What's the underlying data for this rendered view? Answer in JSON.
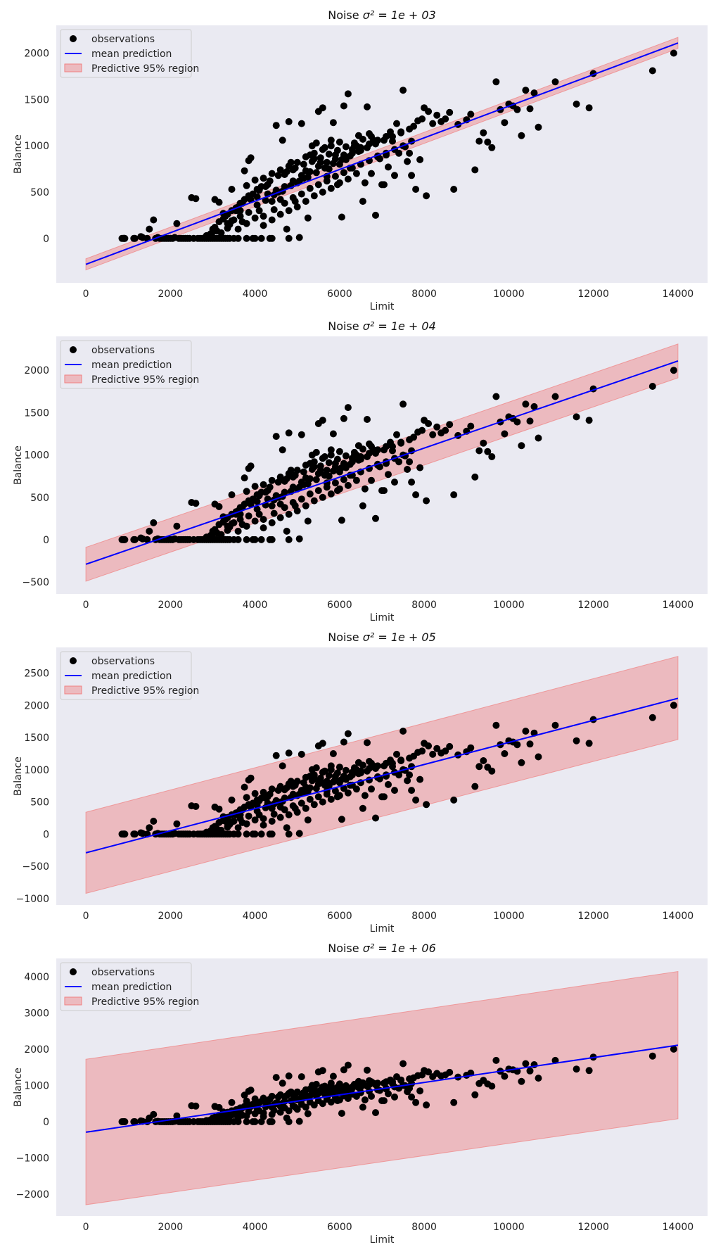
{
  "figure": {
    "background": "#ffffff",
    "plot_background": "#eaeaf2"
  },
  "colors": {
    "points": "#000000",
    "line": "#0000ff",
    "band": "#f08080",
    "band_alpha": 0.45
  },
  "legend_entries": {
    "observations": "observations",
    "mean": "mean prediction",
    "band": "Predictive 95% region"
  },
  "chart_data": [
    {
      "type": "scatter",
      "title_prefix": "Noise ",
      "title_math": "σ² = 1e + 03",
      "xlabel": "Limit",
      "ylabel": "Balance",
      "xlim": [
        -700,
        14700
      ],
      "ylim": [
        -480,
        2300
      ],
      "xticks": [
        0,
        2000,
        4000,
        6000,
        8000,
        10000,
        12000,
        14000
      ],
      "xtick_labels": [
        "0",
        "2000",
        "4000",
        "6000",
        "8000",
        "10000",
        "12000",
        "14000"
      ],
      "yticks": [
        0,
        500,
        1000,
        1500,
        2000
      ],
      "ytick_labels": [
        "0",
        "500",
        "1000",
        "1500",
        "2000"
      ],
      "mean_line": [
        [
          0,
          -280
        ],
        [
          14000,
          2110
        ]
      ],
      "band_upper": [
        [
          0,
          -220
        ],
        [
          14000,
          2170
        ]
      ],
      "band_lower": [
        [
          0,
          -340
        ],
        [
          14000,
          2050
        ]
      ]
    },
    {
      "type": "scatter",
      "title_prefix": "Noise ",
      "title_math": "σ² = 1e + 04",
      "xlabel": "Limit",
      "ylabel": "Balance",
      "xlim": [
        -700,
        14700
      ],
      "ylim": [
        -640,
        2400
      ],
      "xticks": [
        0,
        2000,
        4000,
        6000,
        8000,
        10000,
        12000,
        14000
      ],
      "xtick_labels": [
        "0",
        "2000",
        "4000",
        "6000",
        "8000",
        "10000",
        "12000",
        "14000"
      ],
      "yticks": [
        -500,
        0,
        500,
        1000,
        1500,
        2000
      ],
      "ytick_labels": [
        "−500",
        "0",
        "500",
        "1000",
        "1500",
        "2000"
      ],
      "mean_line": [
        [
          0,
          -290
        ],
        [
          14000,
          2110
        ]
      ],
      "band_upper": [
        [
          0,
          -90
        ],
        [
          14000,
          2310
        ]
      ],
      "band_lower": [
        [
          0,
          -490
        ],
        [
          14000,
          1910
        ]
      ]
    },
    {
      "type": "scatter",
      "title_prefix": "Noise ",
      "title_math": "σ² = 1e + 05",
      "xlabel": "Limit",
      "ylabel": "Balance",
      "xlim": [
        -700,
        14700
      ],
      "ylim": [
        -1100,
        2900
      ],
      "xticks": [
        0,
        2000,
        4000,
        6000,
        8000,
        10000,
        12000,
        14000
      ],
      "xtick_labels": [
        "0",
        "2000",
        "4000",
        "6000",
        "8000",
        "10000",
        "12000",
        "14000"
      ],
      "yticks": [
        -1000,
        -500,
        0,
        500,
        1000,
        1500,
        2000,
        2500
      ],
      "ytick_labels": [
        "−1000",
        "−500",
        "0",
        "500",
        "1000",
        "1500",
        "2000",
        "2500"
      ],
      "mean_line": [
        [
          0,
          -290
        ],
        [
          14000,
          2110
        ]
      ],
      "band_upper": [
        [
          0,
          340
        ],
        [
          14000,
          2760
        ]
      ],
      "band_lower": [
        [
          0,
          -920
        ],
        [
          14000,
          1470
        ]
      ]
    },
    {
      "type": "scatter",
      "title_prefix": "Noise ",
      "title_math": "σ² = 1e + 06",
      "xlabel": "Limit",
      "ylabel": "Balance",
      "xlim": [
        -700,
        14700
      ],
      "ylim": [
        -2600,
        4500
      ],
      "xticks": [
        0,
        2000,
        4000,
        6000,
        8000,
        10000,
        12000,
        14000
      ],
      "xtick_labels": [
        "0",
        "2000",
        "4000",
        "6000",
        "8000",
        "10000",
        "12000",
        "14000"
      ],
      "yticks": [
        -2000,
        -1000,
        0,
        1000,
        2000,
        3000,
        4000
      ],
      "ytick_labels": [
        "−2000",
        "−1000",
        "0",
        "1000",
        "2000",
        "3000",
        "4000"
      ],
      "mean_line": [
        [
          0,
          -290
        ],
        [
          14000,
          2110
        ]
      ],
      "band_upper": [
        [
          0,
          1720
        ],
        [
          14000,
          4140
        ]
      ],
      "band_lower": [
        [
          0,
          -2290
        ],
        [
          14000,
          80
        ]
      ]
    }
  ],
  "observations": [
    [
      855,
      0
    ],
    [
      886,
      0
    ],
    [
      905,
      0
    ],
    [
      920,
      0
    ],
    [
      1134,
      0
    ],
    [
      1160,
      0
    ],
    [
      1300,
      20
    ],
    [
      1340,
      10
    ],
    [
      1450,
      0
    ],
    [
      1500,
      100
    ],
    [
      1600,
      200
    ],
    [
      1650,
      0
    ],
    [
      1700,
      10
    ],
    [
      1750,
      0
    ],
    [
      1800,
      0
    ],
    [
      1850,
      0
    ],
    [
      1900,
      0
    ],
    [
      1950,
      0
    ],
    [
      2000,
      0
    ],
    [
      2050,
      0
    ],
    [
      2100,
      10
    ],
    [
      2150,
      160
    ],
    [
      2200,
      0
    ],
    [
      2250,
      0
    ],
    [
      2300,
      0
    ],
    [
      2350,
      0
    ],
    [
      2400,
      0
    ],
    [
      2450,
      0
    ],
    [
      2500,
      440
    ],
    [
      2550,
      0
    ],
    [
      2600,
      430
    ],
    [
      2650,
      0
    ],
    [
      2700,
      0
    ],
    [
      2750,
      0
    ],
    [
      2800,
      0
    ],
    [
      2850,
      0
    ],
    [
      2900,
      30
    ],
    [
      2950,
      0
    ],
    [
      3000,
      100
    ],
    [
      3000,
      70
    ],
    [
      3050,
      420
    ],
    [
      3100,
      0
    ],
    [
      3150,
      390
    ],
    [
      3200,
      0
    ],
    [
      3250,
      270
    ],
    [
      3300,
      0
    ],
    [
      3350,
      160
    ],
    [
      3400,
      150
    ],
    [
      3450,
      530
    ],
    [
      3500,
      0
    ],
    [
      3550,
      300
    ],
    [
      3600,
      340
    ],
    [
      3650,
      300
    ],
    [
      3700,
      180
    ],
    [
      3750,
      730
    ],
    [
      3800,
      570
    ],
    [
      3850,
      840
    ],
    [
      3900,
      870
    ],
    [
      3950,
      0
    ],
    [
      4000,
      630
    ],
    [
      4050,
      450
    ],
    [
      4100,
      520
    ],
    [
      4150,
      0
    ],
    [
      4200,
      240
    ],
    [
      4250,
      560
    ],
    [
      4300,
      580
    ],
    [
      4350,
      0
    ],
    [
      4400,
      400
    ],
    [
      4450,
      310
    ],
    [
      4500,
      1220
    ],
    [
      4550,
      500
    ],
    [
      4600,
      420
    ],
    [
      4650,
      1060
    ],
    [
      4700,
      690
    ],
    [
      4750,
      100
    ],
    [
      4800,
      1260
    ],
    [
      4850,
      820
    ],
    [
      4900,
      740
    ],
    [
      4950,
      400
    ],
    [
      5000,
      600
    ],
    [
      5050,
      10
    ],
    [
      5100,
      1240
    ],
    [
      5150,
      650
    ],
    [
      5200,
      730
    ],
    [
      5250,
      220
    ],
    [
      5300,
      900
    ],
    [
      5350,
      1000
    ],
    [
      5400,
      860
    ],
    [
      5450,
      1030
    ],
    [
      5500,
      1370
    ],
    [
      5550,
      820
    ],
    [
      5600,
      1410
    ],
    [
      5650,
      980
    ],
    [
      5700,
      670
    ],
    [
      5750,
      750
    ],
    [
      5800,
      1060
    ],
    [
      5850,
      1250
    ],
    [
      5900,
      900
    ],
    [
      5950,
      580
    ],
    [
      6000,
      800
    ],
    [
      6050,
      230
    ],
    [
      6100,
      1430
    ],
    [
      6150,
      850
    ],
    [
      6200,
      1560
    ],
    [
      6250,
      760
    ],
    [
      6300,
      960
    ],
    [
      6350,
      1000
    ],
    [
      6400,
      1000
    ],
    [
      6450,
      1110
    ],
    [
      6500,
      950
    ],
    [
      6550,
      400
    ],
    [
      6600,
      600
    ],
    [
      6650,
      1420
    ],
    [
      6700,
      1130
    ],
    [
      6750,
      700
    ],
    [
      6800,
      1060
    ],
    [
      6850,
      250
    ],
    [
      6900,
      890
    ],
    [
      6950,
      860
    ],
    [
      7000,
      580
    ],
    [
      7050,
      580
    ],
    [
      7100,
      900
    ],
    [
      7150,
      770
    ],
    [
      7200,
      1150
    ],
    [
      7250,
      1050
    ],
    [
      7300,
      680
    ],
    [
      7350,
      1240
    ],
    [
      7400,
      920
    ],
    [
      7450,
      1150
    ],
    [
      7500,
      1600
    ],
    [
      7550,
      990
    ],
    [
      7600,
      830
    ],
    [
      7650,
      920
    ],
    [
      7700,
      680
    ],
    [
      7750,
      1210
    ],
    [
      7800,
      530
    ],
    [
      7850,
      1270
    ],
    [
      7900,
      850
    ],
    [
      7950,
      1290
    ],
    [
      8000,
      1410
    ],
    [
      8050,
      460
    ],
    [
      8100,
      1370
    ],
    [
      8200,
      1240
    ],
    [
      8300,
      1330
    ],
    [
      8400,
      1260
    ],
    [
      8500,
      1290
    ],
    [
      8600,
      1360
    ],
    [
      8700,
      530
    ],
    [
      8800,
      1230
    ],
    [
      9000,
      1280
    ],
    [
      9100,
      1340
    ],
    [
      9200,
      740
    ],
    [
      9300,
      1050
    ],
    [
      9400,
      1140
    ],
    [
      9500,
      1040
    ],
    [
      9600,
      980
    ],
    [
      9700,
      1690
    ],
    [
      9800,
      1390
    ],
    [
      9900,
      1250
    ],
    [
      10000,
      1450
    ],
    [
      10100,
      1430
    ],
    [
      10200,
      1390
    ],
    [
      10300,
      1110
    ],
    [
      10400,
      1600
    ],
    [
      10500,
      1400
    ],
    [
      10600,
      1570
    ],
    [
      10700,
      1200
    ],
    [
      11100,
      1690
    ],
    [
      11600,
      1450
    ],
    [
      11900,
      1410
    ],
    [
      12000,
      1780
    ],
    [
      13400,
      1810
    ],
    [
      13900,
      2000
    ],
    [
      3100,
      80
    ],
    [
      3300,
      240
    ],
    [
      3500,
      200
    ],
    [
      3700,
      380
    ],
    [
      3900,
      420
    ],
    [
      4100,
      300
    ],
    [
      4300,
      480
    ],
    [
      4500,
      520
    ],
    [
      4700,
      560
    ],
    [
      4900,
      620
    ],
    [
      5100,
      680
    ],
    [
      5300,
      720
    ],
    [
      5500,
      780
    ],
    [
      5700,
      820
    ],
    [
      5900,
      860
    ],
    [
      6100,
      900
    ],
    [
      6300,
      920
    ],
    [
      6500,
      980
    ],
    [
      6700,
      1020
    ],
    [
      6900,
      1060
    ],
    [
      7100,
      1100
    ],
    [
      4200,
      650
    ],
    [
      4400,
      700
    ],
    [
      4600,
      740
    ],
    [
      4800,
      780
    ],
    [
      5000,
      820
    ],
    [
      5200,
      880
    ],
    [
      5400,
      920
    ],
    [
      5600,
      960
    ],
    [
      5800,
      1000
    ],
    [
      6000,
      1040
    ],
    [
      3600,
      100
    ],
    [
      3800,
      160
    ],
    [
      4000,
      220
    ],
    [
      4200,
      140
    ],
    [
      4400,
      200
    ],
    [
      4600,
      260
    ],
    [
      4800,
      300
    ],
    [
      5000,
      340
    ],
    [
      5200,
      400
    ],
    [
      5400,
      460
    ],
    [
      5600,
      500
    ],
    [
      5800,
      540
    ],
    [
      6000,
      600
    ],
    [
      6200,
      640
    ],
    [
      6400,
      700
    ],
    [
      3400,
      0
    ],
    [
      3600,
      0
    ],
    [
      3800,
      0
    ],
    [
      4000,
      0
    ],
    [
      4400,
      0
    ],
    [
      4800,
      0
    ],
    [
      3200,
      60
    ],
    [
      3350,
      110
    ],
    [
      3450,
      190
    ],
    [
      3650,
      240
    ],
    [
      3850,
      280
    ],
    [
      4050,
      360
    ],
    [
      4250,
      410
    ],
    [
      4450,
      470
    ],
    [
      4650,
      510
    ],
    [
      4850,
      570
    ],
    [
      5050,
      620
    ],
    [
      5250,
      660
    ],
    [
      5450,
      710
    ],
    [
      5650,
      760
    ],
    [
      5850,
      810
    ],
    [
      6050,
      850
    ],
    [
      6250,
      890
    ],
    [
      6450,
      940
    ],
    [
      6650,
      980
    ],
    [
      6850,
      1020
    ],
    [
      7050,
      1060
    ],
    [
      7250,
      1100
    ],
    [
      7450,
      1140
    ],
    [
      7650,
      1180
    ],
    [
      2900,
      0
    ],
    [
      3000,
      0
    ],
    [
      3050,
      0
    ],
    [
      3150,
      0
    ],
    [
      3250,
      0
    ],
    [
      3350,
      0
    ],
    [
      2850,
      30
    ],
    [
      2950,
      50
    ],
    [
      3050,
      120
    ],
    [
      3150,
      180
    ],
    [
      3250,
      210
    ],
    [
      3350,
      260
    ],
    [
      3450,
      300
    ],
    [
      3550,
      330
    ],
    [
      3650,
      380
    ],
    [
      3750,
      420
    ],
    [
      3850,
      460
    ],
    [
      3950,
      480
    ],
    [
      4050,
      530
    ],
    [
      4150,
      560
    ],
    [
      4350,
      620
    ],
    [
      4550,
      680
    ],
    [
      4750,
      720
    ],
    [
      4950,
      760
    ],
    [
      5150,
      800
    ],
    [
      5350,
      830
    ],
    [
      5550,
      870
    ],
    [
      5750,
      910
    ],
    [
      5950,
      950
    ],
    [
      6150,
      990
    ],
    [
      6350,
      1030
    ],
    [
      6550,
      1070
    ],
    [
      6750,
      1100
    ],
    [
      4700,
      380
    ],
    [
      4900,
      440
    ],
    [
      5100,
      480
    ],
    [
      5300,
      540
    ],
    [
      5500,
      580
    ],
    [
      5700,
      620
    ],
    [
      5900,
      670
    ],
    [
      6100,
      710
    ],
    [
      6300,
      760
    ],
    [
      6500,
      800
    ],
    [
      6700,
      840
    ],
    [
      6900,
      880
    ],
    [
      7100,
      920
    ],
    [
      7300,
      960
    ],
    [
      7500,
      1000
    ],
    [
      7700,
      1050
    ]
  ]
}
